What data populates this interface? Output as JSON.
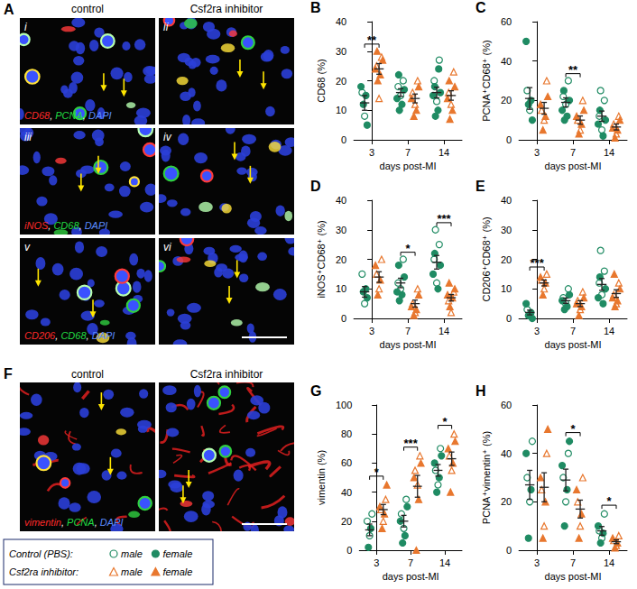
{
  "figure": {
    "A": {
      "letter": "A",
      "columns": [
        "control",
        "Csf2ra inhibitor"
      ],
      "rows": [
        {
          "numerals": [
            "i",
            "ii"
          ],
          "stains": "CD68, PCNA, DAPI"
        },
        {
          "numerals": [
            "iii",
            "iv"
          ],
          "stains": "iNOS, CD68, DAPI"
        },
        {
          "numerals": [
            "v",
            "vi"
          ],
          "stains": "CD206, CD68, DAPI"
        }
      ]
    },
    "F": {
      "letter": "F",
      "columns": [
        "control",
        "Csf2ra inhibitor"
      ],
      "stains": "vimentin, PCNA, DAPI"
    }
  },
  "legend_box": {
    "rows": [
      {
        "group": "Control (PBS):",
        "entries": [
          "male",
          "female"
        ]
      },
      {
        "group": "Csf2ra inhibitor:",
        "entries": [
          "male",
          "female"
        ]
      }
    ]
  },
  "chart_data": [
    {
      "type": "scatter",
      "panel": "B",
      "ylabel": "CD68 (%)",
      "xlabel": "days post-MI",
      "categories": [
        "3",
        "7",
        "14"
      ],
      "ylim": [
        0,
        40
      ],
      "yticks": [
        0,
        10,
        20,
        30,
        40
      ],
      "grid": false,
      "series": [
        {
          "name": "male",
          "group": "Control (PBS):",
          "color": "#1f8b63",
          "marker": "circle-open",
          "values": [
            [
              8,
              16
            ],
            [
              15,
              18,
              20
            ],
            [
              13,
              20,
              27
            ]
          ]
        },
        {
          "name": "female",
          "group": "Control (PBS):",
          "color": "#1f8b63",
          "marker": "circle",
          "values": [
            [
              5,
              12,
              15,
              18
            ],
            [
              10,
              12,
              14,
              17,
              22
            ],
            [
              8,
              10,
              15,
              16,
              18,
              24
            ]
          ]
        },
        {
          "name": "male",
          "group": "Csf2ra inhibitor:",
          "color": "#e8772e",
          "marker": "triangle-open",
          "values": [
            [
              14,
              25,
              28
            ],
            [
              12,
              16,
              20
            ],
            [
              12,
              16,
              23
            ]
          ]
        },
        {
          "name": "female",
          "group": "Csf2ra inhibitor:",
          "color": "#e8772e",
          "marker": "triangle",
          "values": [
            [
              20,
              22,
              24,
              27,
              30
            ],
            [
              8,
              10,
              14,
              18
            ],
            [
              7,
              10,
              14,
              18,
              20
            ]
          ]
        }
      ],
      "summary": [
        {
          "group": "Control (PBS):",
          "mean": [
            12.5,
            16,
            16
          ],
          "error": [
            2.5,
            1.3,
            1.8
          ]
        },
        {
          "group": "Csf2ra inhibitor:",
          "mean": [
            24,
            14,
            15
          ],
          "error": [
            1.8,
            1.5,
            1.6
          ]
        }
      ],
      "annotations": [
        {
          "category": "3",
          "text": "**"
        }
      ]
    },
    {
      "type": "scatter",
      "panel": "C",
      "ylabel": "PCNA⁺CD68⁺ (%)",
      "xlabel": "days post-MI",
      "categories": [
        "3",
        "7",
        "14"
      ],
      "ylim": [
        0,
        60
      ],
      "yticks": [
        0,
        20,
        40,
        60
      ],
      "grid": false,
      "series": [
        {
          "name": "male",
          "group": "Control (PBS):",
          "color": "#1f8b63",
          "marker": "circle-open",
          "values": [
            [
              15,
              25
            ],
            [
              18,
              22,
              30
            ],
            [
              5,
              12,
              20,
              25
            ]
          ]
        },
        {
          "name": "female",
          "group": "Control (PBS):",
          "color": "#1f8b63",
          "marker": "circle",
          "values": [
            [
              10,
              18,
              20,
              50
            ],
            [
              10,
              12,
              15,
              20,
              25
            ],
            [
              2,
              8,
              10,
              15
            ]
          ]
        },
        {
          "name": "male",
          "group": "Csf2ra inhibitor:",
          "color": "#e8772e",
          "marker": "triangle-open",
          "values": [
            [
              10,
              15,
              30
            ],
            [
              5,
              10,
              20
            ],
            [
              3,
              8,
              12
            ]
          ]
        },
        {
          "name": "female",
          "group": "Csf2ra inhibitor:",
          "color": "#e8772e",
          "marker": "triangle",
          "values": [
            [
              5,
              12,
              18,
              22
            ],
            [
              3,
              8,
              12,
              15
            ],
            [
              1,
              5,
              6,
              10
            ]
          ]
        }
      ],
      "summary": [
        {
          "group": "Control (PBS):",
          "mean": [
            21,
            19,
            12
          ],
          "error": [
            5.5,
            2.3,
            2.6
          ]
        },
        {
          "group": "Csf2ra inhibitor:",
          "mean": [
            16,
            10,
            6.5
          ],
          "error": [
            3,
            2.1,
            1.5
          ]
        }
      ],
      "annotations": [
        {
          "category": "7",
          "text": "**"
        }
      ]
    },
    {
      "type": "scatter",
      "panel": "D",
      "ylabel": "iNOS⁺CD68⁺ (%)",
      "xlabel": "days post-MI",
      "categories": [
        "3",
        "7",
        "14"
      ],
      "ylim": [
        0,
        40
      ],
      "yticks": [
        0,
        10,
        20,
        30,
        40
      ],
      "grid": false,
      "series": [
        {
          "name": "male",
          "group": "Control (PBS):",
          "color": "#1f8b63",
          "marker": "circle-open",
          "values": [
            [
              5,
              15
            ],
            [
              10,
              12,
              20
            ],
            [
              12,
              20,
              25,
              30
            ]
          ]
        },
        {
          "name": "female",
          "group": "Control (PBS):",
          "color": "#1f8b63",
          "marker": "circle",
          "values": [
            [
              7,
              9,
              10
            ],
            [
              6,
              8,
              9,
              14,
              18
            ],
            [
              10,
              15,
              18,
              22
            ]
          ]
        },
        {
          "name": "male",
          "group": "Csf2ra inhibitor:",
          "color": "#e8772e",
          "marker": "triangle-open",
          "values": [
            [
              10,
              15,
              20
            ],
            [
              2,
              5,
              10
            ],
            [
              2,
              6,
              9
            ]
          ]
        },
        {
          "name": "female",
          "group": "Csf2ra inhibitor:",
          "color": "#e8772e",
          "marker": "triangle",
          "values": [
            [
              8,
              13,
              18
            ],
            [
              1,
              3,
              4,
              8
            ],
            [
              4,
              7,
              8,
              10,
              12
            ]
          ]
        }
      ],
      "summary": [
        {
          "group": "Control (PBS):",
          "mean": [
            9,
            12,
            19
          ],
          "error": [
            1.8,
            1.6,
            2.3
          ]
        },
        {
          "group": "Csf2ra inhibitor:",
          "mean": [
            14,
            5,
            7
          ],
          "error": [
            1.8,
            1.2,
            1.1
          ]
        }
      ],
      "annotations": [
        {
          "category": "7",
          "text": "*"
        },
        {
          "category": "14",
          "text": "***"
        }
      ]
    },
    {
      "type": "scatter",
      "panel": "E",
      "ylabel": "CD206⁺CD68⁺ (%)",
      "xlabel": "days post-MI",
      "categories": [
        "3",
        "7",
        "14"
      ],
      "ylim": [
        0,
        40
      ],
      "yticks": [
        0,
        10,
        20,
        30,
        40
      ],
      "grid": false,
      "series": [
        {
          "name": "male",
          "group": "Control (PBS):",
          "color": "#1f8b63",
          "marker": "circle-open",
          "values": [
            [
              1,
              3
            ],
            [
              5,
              7,
              10
            ],
            [
              8,
              12,
              16,
              23
            ]
          ]
        },
        {
          "name": "female",
          "group": "Control (PBS):",
          "color": "#1f8b63",
          "marker": "circle",
          "values": [
            [
              0,
              1,
              2,
              5
            ],
            [
              3,
              4,
              6,
              8
            ],
            [
              5,
              7,
              10,
              14
            ]
          ]
        },
        {
          "name": "male",
          "group": "Csf2ra inhibitor:",
          "color": "#e8772e",
          "marker": "triangle-open",
          "values": [
            [
              10,
              13,
              15
            ],
            [
              3,
              6,
              9
            ],
            [
              5,
              8,
              12
            ]
          ]
        },
        {
          "name": "female",
          "group": "Csf2ra inhibitor:",
          "color": "#e8772e",
          "marker": "triangle",
          "values": [
            [
              8,
              12,
              14
            ],
            [
              1,
              4,
              5,
              7
            ],
            [
              4,
              6,
              7,
              10,
              15
            ]
          ]
        }
      ],
      "summary": [
        {
          "group": "Control (PBS):",
          "mean": [
            2,
            6,
            11.5
          ],
          "error": [
            0.8,
            0.9,
            2.0
          ]
        },
        {
          "group": "Csf2ra inhibitor:",
          "mean": [
            12,
            5,
            8.4
          ],
          "error": [
            1,
            1,
            1.3
          ]
        }
      ],
      "annotations": [
        {
          "category": "3",
          "text": "***"
        }
      ]
    },
    {
      "type": "scatter",
      "panel": "G",
      "ylabel": "vimentin (%)",
      "xlabel": "days post-MI",
      "categories": [
        "3",
        "7",
        "14"
      ],
      "ylim": [
        0,
        100
      ],
      "yticks": [
        0,
        20,
        40,
        60,
        80,
        100
      ],
      "grid": false,
      "series": [
        {
          "name": "male",
          "group": "Control (PBS):",
          "color": "#1f8b63",
          "marker": "circle-open",
          "values": [
            [
              10,
              20,
              25
            ],
            [
              15,
              25,
              35
            ],
            [
              45,
              55,
              70
            ]
          ]
        },
        {
          "name": "female",
          "group": "Control (PBS):",
          "color": "#1f8b63",
          "marker": "circle",
          "values": [
            [
              2,
              15
            ],
            [
              5,
              10,
              20,
              30
            ],
            [
              40,
              50,
              60,
              65
            ]
          ]
        },
        {
          "name": "male",
          "group": "Csf2ra inhibitor:",
          "color": "#e8772e",
          "marker": "triangle-open",
          "values": [
            [
              20,
              28,
              35
            ],
            [
              45,
              55,
              65
            ],
            [
              55,
              65,
              80
            ]
          ]
        },
        {
          "name": "female",
          "group": "Csf2ra inhibitor:",
          "color": "#e8772e",
          "marker": "triangle",
          "values": [
            [
              15,
              25,
              30,
              45
            ],
            [
              0,
              35,
              50,
              60
            ],
            [
              40,
              60,
              70,
              75
            ]
          ]
        }
      ],
      "summary": [
        {
          "group": "Control (PBS):",
          "mean": [
            14,
            20,
            55
          ],
          "error": [
            4,
            4,
            4
          ]
        },
        {
          "group": "Csf2ra inhibitor:",
          "mean": [
            28,
            44,
            63
          ],
          "error": [
            3.5,
            7.5,
            4.6
          ]
        }
      ],
      "annotations": [
        {
          "category": "3",
          "text": "*"
        },
        {
          "category": "7",
          "text": "***"
        },
        {
          "category": "14",
          "text": "*"
        }
      ]
    },
    {
      "type": "scatter",
      "panel": "H",
      "ylabel": "PCNA⁺vimentin⁺ (%)",
      "xlabel": "days post-MI",
      "categories": [
        "3",
        "7",
        "14"
      ],
      "ylim": [
        0,
        60
      ],
      "yticks": [
        0,
        20,
        40,
        60
      ],
      "grid": false,
      "series": [
        {
          "name": "male",
          "group": "Control (PBS):",
          "color": "#1f8b63",
          "marker": "circle-open",
          "values": [
            [
              20,
              30,
              45
            ],
            [
              20,
              30,
              40
            ],
            [
              5,
              8,
              15
            ]
          ]
        },
        {
          "name": "female",
          "group": "Control (PBS):",
          "color": "#1f8b63",
          "marker": "circle",
          "values": [
            [
              5,
              25,
              40
            ],
            [
              10,
              25,
              35,
              45
            ],
            [
              3,
              7,
              10
            ]
          ]
        },
        {
          "name": "male",
          "group": "Csf2ra inhibitor:",
          "color": "#e8772e",
          "marker": "triangle-open",
          "values": [
            [
              10,
              25,
              40
            ],
            [
              10,
              20,
              30
            ],
            [
              2,
              4,
              6
            ]
          ]
        },
        {
          "name": "female",
          "group": "Csf2ra inhibitor:",
          "color": "#e8772e",
          "marker": "triangle",
          "values": [
            [
              5,
              20,
              30,
              50
            ],
            [
              5,
              15,
              25
            ],
            [
              1,
              3,
              5
            ]
          ]
        }
      ],
      "summary": [
        {
          "group": "Control (PBS):",
          "mean": [
            27,
            29,
            8
          ],
          "error": [
            6,
            4.5,
            1.8
          ]
        },
        {
          "group": "Csf2ra inhibitor:",
          "mean": [
            26,
            17,
            3.5
          ],
          "error": [
            6,
            3.7,
            0.8
          ]
        }
      ],
      "annotations": [
        {
          "category": "7",
          "text": "*"
        },
        {
          "category": "14",
          "text": "*"
        }
      ]
    }
  ]
}
